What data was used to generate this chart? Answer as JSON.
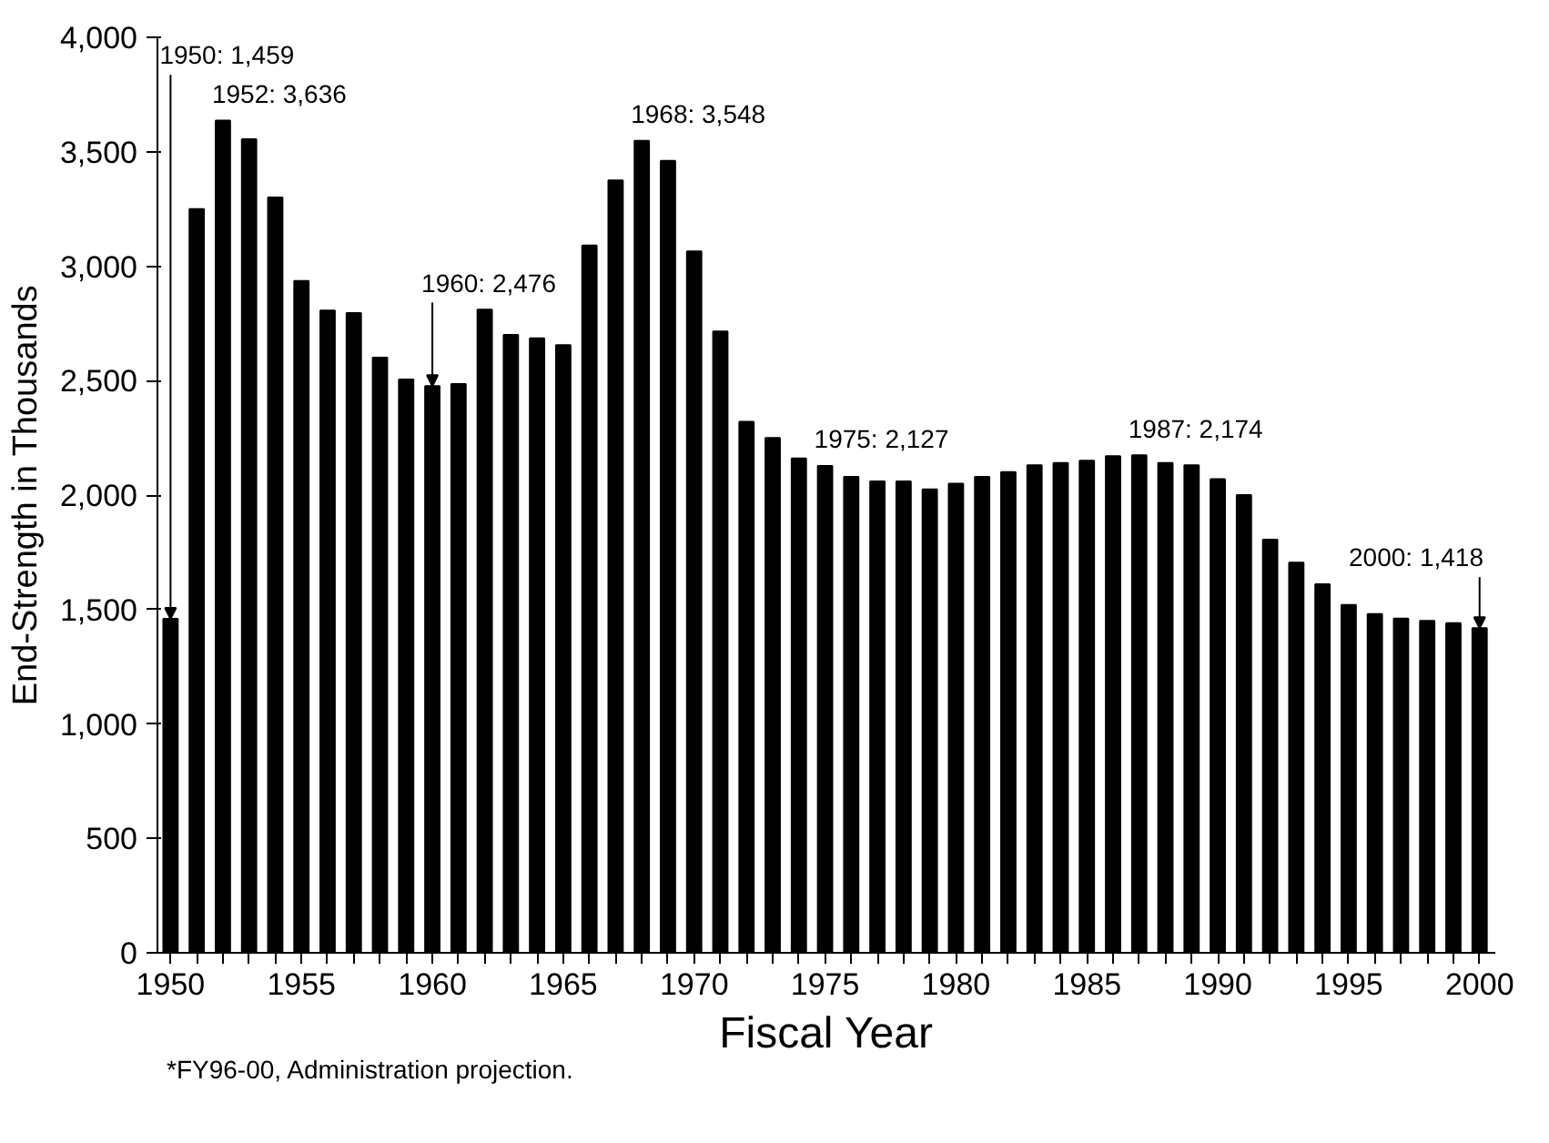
{
  "chart_data": {
    "type": "bar",
    "xlabel": "Fiscal Year",
    "ylabel": "End-Strength in Thousands",
    "x": [
      1950,
      1951,
      1952,
      1953,
      1954,
      1955,
      1956,
      1957,
      1958,
      1959,
      1960,
      1961,
      1962,
      1963,
      1964,
      1965,
      1966,
      1967,
      1968,
      1969,
      1970,
      1971,
      1972,
      1973,
      1974,
      1975,
      1976,
      1977,
      1978,
      1979,
      1980,
      1981,
      1982,
      1983,
      1984,
      1985,
      1986,
      1987,
      1988,
      1989,
      1990,
      1991,
      1992,
      1993,
      1994,
      1995,
      1996,
      1997,
      1998,
      1999,
      2000
    ],
    "values": [
      1459,
      3250,
      3636,
      3555,
      3300,
      2935,
      2806,
      2795,
      2600,
      2505,
      2476,
      2485,
      2810,
      2700,
      2685,
      2655,
      3090,
      3375,
      3548,
      3460,
      3065,
      2715,
      2320,
      2250,
      2160,
      2127,
      2080,
      2060,
      2060,
      2025,
      2050,
      2080,
      2100,
      2130,
      2140,
      2150,
      2170,
      2174,
      2140,
      2130,
      2070,
      2000,
      1805,
      1705,
      1610,
      1520,
      1480,
      1460,
      1450,
      1440,
      1418
    ],
    "color": "#000000",
    "xlim": [
      1949.5,
      2000.6
    ],
    "ylim": [
      0,
      4000
    ],
    "xticks": [
      1950,
      {
        "value": 1951,
        "label": null
      },
      {
        "value": 1952,
        "label": null
      },
      {
        "value": 1953,
        "label": null
      },
      {
        "value": 1954,
        "label": null
      },
      1955,
      {
        "value": 1956,
        "label": null
      },
      {
        "value": 1957,
        "label": null
      },
      {
        "value": 1958,
        "label": null
      },
      {
        "value": 1959,
        "label": null
      },
      1960,
      {
        "value": 1961,
        "label": null
      },
      {
        "value": 1962,
        "label": null
      },
      {
        "value": 1963,
        "label": null
      },
      {
        "value": 1964,
        "label": null
      },
      1965,
      {
        "value": 1966,
        "label": null
      },
      {
        "value": 1967,
        "label": null
      },
      {
        "value": 1968,
        "label": null
      },
      {
        "value": 1969,
        "label": null
      },
      1970,
      {
        "value": 1971,
        "label": null
      },
      {
        "value": 1972,
        "label": null
      },
      {
        "value": 1973,
        "label": null
      },
      {
        "value": 1974,
        "label": null
      },
      1975,
      {
        "value": 1976,
        "label": null
      },
      {
        "value": 1977,
        "label": null
      },
      {
        "value": 1978,
        "label": null
      },
      {
        "value": 1979,
        "label": null
      },
      1980,
      {
        "value": 1981,
        "label": null
      },
      {
        "value": 1982,
        "label": null
      },
      {
        "value": 1983,
        "label": null
      },
      {
        "value": 1984,
        "label": null
      },
      1985,
      {
        "value": 1986,
        "label": null
      },
      {
        "value": 1987,
        "label": null
      },
      {
        "value": 1988,
        "label": null
      },
      {
        "value": 1989,
        "label": null
      },
      1990,
      {
        "value": 1991,
        "label": null
      },
      {
        "value": 1992,
        "label": null
      },
      {
        "value": 1993,
        "label": null
      },
      {
        "value": 1994,
        "label": null
      },
      1995,
      {
        "value": 1996,
        "label": null
      },
      {
        "value": 1997,
        "label": null
      },
      {
        "value": 1998,
        "label": null
      },
      {
        "value": 1999,
        "label": null
      },
      2000
    ],
    "yticks": [
      0,
      500,
      {
        "value": 1000,
        "label": "1,000"
      },
      {
        "value": 1500,
        "label": "1,500"
      },
      {
        "value": 2000,
        "label": "2,000"
      },
      {
        "value": 2500,
        "label": "2,500"
      },
      {
        "value": 3000,
        "label": "3,000"
      },
      {
        "value": 3500,
        "label": "3,500"
      },
      {
        "value": 4000,
        "label": "4,000"
      }
    ],
    "grid": false,
    "annotations": [
      {
        "text": "1950:  1,459",
        "x": 1950,
        "y": 1459
      },
      {
        "text": "1952: 3,636",
        "x": 1952,
        "y": 3636
      },
      {
        "text": "1960: 2,476",
        "x": 1960,
        "y": 2476
      },
      {
        "text": "1968: 3,548",
        "x": 1968,
        "y": 3548
      },
      {
        "text": "1975:  2,127",
        "x": 1975,
        "y": 2127
      },
      {
        "text": "1987:  2,174",
        "x": 1987,
        "y": 2174
      },
      {
        "text": "2000:  1,418",
        "x": 2000,
        "y": 1418
      },
      "*FY96-00, Administration projection."
    ]
  }
}
